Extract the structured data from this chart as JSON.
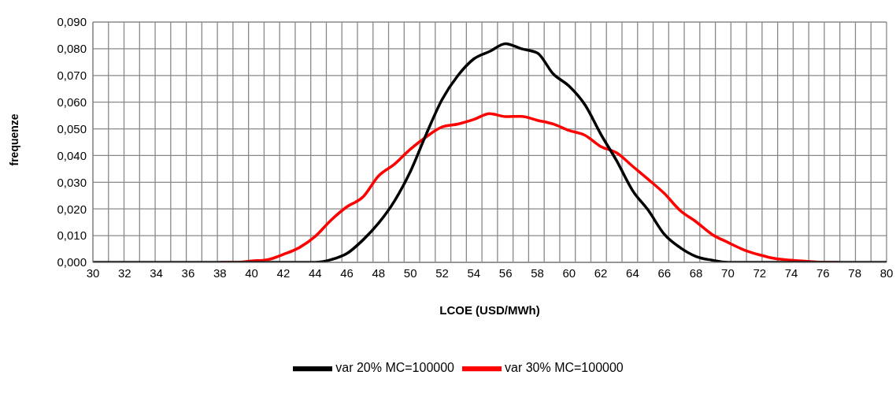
{
  "chart_data": {
    "type": "line",
    "xlabel": "LCOE (USD/MWh)",
    "ylabel": "frequenze",
    "categories": [
      "30",
      null,
      "32",
      null,
      "34",
      null,
      "36",
      null,
      "38",
      null,
      "40",
      null,
      "42",
      null,
      "44",
      null,
      "46",
      null,
      "48",
      null,
      "50",
      null,
      "52",
      null,
      "54",
      null,
      "56",
      null,
      "58",
      null,
      "60",
      null,
      "62",
      null,
      "64",
      null,
      "66",
      null,
      "68",
      null,
      "70",
      null,
      "72",
      null,
      "74",
      null,
      "76",
      null,
      "78",
      null,
      "80"
    ],
    "series": [
      {
        "name": "var 30% MC=100000",
        "color": "#ff0000",
        "values": [
          null,
          null,
          null,
          null,
          null,
          null,
          null,
          null,
          0,
          0,
          0.0005,
          0.001,
          0.003,
          0.0055,
          0.0097,
          0.0158,
          0.0208,
          0.0244,
          0.0324,
          0.0368,
          0.0424,
          0.047,
          0.0507,
          0.0518,
          0.0535,
          0.0557,
          0.0546,
          0.0547,
          0.0532,
          0.0518,
          0.0494,
          0.0476,
          0.0434,
          0.041,
          0.036,
          0.031,
          0.0258,
          0.0194,
          0.0152,
          0.0105,
          0.0075,
          0.0047,
          0.0028,
          0.0014,
          0.0008,
          0.0004,
          0,
          0,
          null,
          null,
          null
        ]
      },
      {
        "name": "var 20% MC=100000",
        "color": "#000000",
        "values": [
          0,
          0,
          0,
          0,
          0,
          0,
          0,
          0,
          0,
          0,
          0,
          0,
          0,
          0,
          0,
          0.001,
          0.0033,
          0.0083,
          0.0147,
          0.023,
          0.034,
          0.048,
          0.061,
          0.07,
          0.0762,
          0.079,
          0.0819,
          0.08,
          0.0784,
          0.0706,
          0.066,
          0.059,
          0.048,
          0.038,
          0.0269,
          0.0194,
          0.0105,
          0.0055,
          0.0022,
          0.0008,
          0,
          0,
          0,
          0,
          0,
          0,
          0,
          0,
          0,
          0,
          0
        ]
      }
    ],
    "ylim": [
      0,
      0.09
    ],
    "yticks": [
      {
        "value": 0,
        "label": "0,000"
      },
      {
        "value": 0.01,
        "label": "0,010"
      },
      {
        "value": 0.02,
        "label": "0,020"
      },
      {
        "value": 0.03,
        "label": "0,030"
      },
      {
        "value": 0.04,
        "label": "0,040"
      },
      {
        "value": 0.05,
        "label": "0,050"
      },
      {
        "value": 0.06,
        "label": "0,060"
      },
      {
        "value": 0.07,
        "label": "0,070"
      },
      {
        "value": 0.08,
        "label": "0,080"
      },
      {
        "value": 0.09,
        "label": "0,090"
      }
    ],
    "grid": true,
    "legend": "bottom",
    "marker": "none",
    "line_style": "solid"
  }
}
